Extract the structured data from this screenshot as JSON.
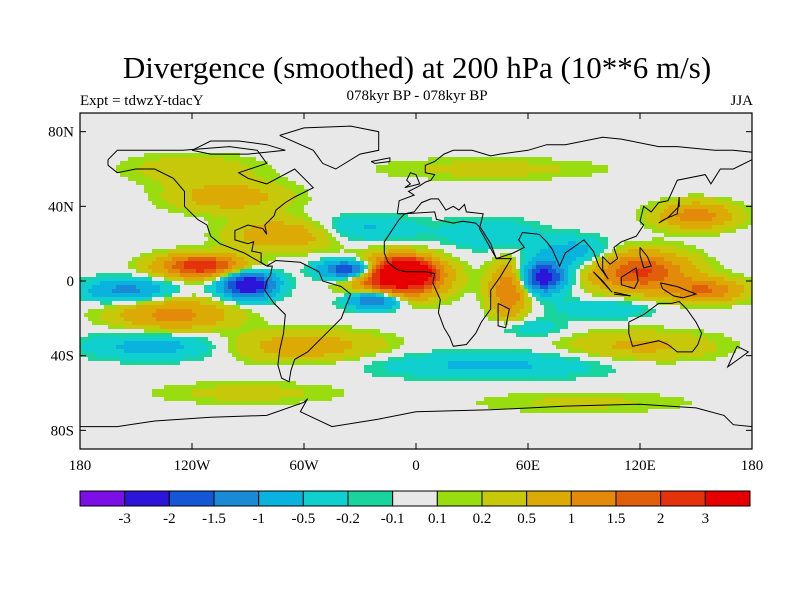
{
  "header": {
    "title": "Divergence (smoothed) at 200 hPa (10**6 m/s)",
    "left_label": "Expt = tdwzY-tdacY",
    "center_label": "078kyr BP - 078kyr BP",
    "right_label": "JJA"
  },
  "axes": {
    "lat_ticks": [
      {
        "value": 80,
        "label": "80N"
      },
      {
        "value": 40,
        "label": "40N"
      },
      {
        "value": 0,
        "label": "0"
      },
      {
        "value": -40,
        "label": "40S"
      },
      {
        "value": -80,
        "label": "80S"
      }
    ],
    "lon_ticks": [
      {
        "value": -180,
        "label": "180"
      },
      {
        "value": -120,
        "label": "120W"
      },
      {
        "value": -60,
        "label": "60W"
      },
      {
        "value": 0,
        "label": "0"
      },
      {
        "value": 60,
        "label": "60E"
      },
      {
        "value": 120,
        "label": "120E"
      },
      {
        "value": 180,
        "label": "180"
      }
    ],
    "lat_range": [
      -90,
      90
    ],
    "lon_range": [
      -180,
      180
    ]
  },
  "colorbar": {
    "labels": [
      "-3",
      "-2",
      "-1.5",
      "-1",
      "-0.5",
      "-0.2",
      "-0.1",
      "0.1",
      "0.2",
      "0.5",
      "1",
      "1.5",
      "2",
      "3"
    ],
    "colors": [
      "#7a0fe6",
      "#2d14d9",
      "#1457d6",
      "#1a8ad6",
      "#0ab3dd",
      "#10cfcf",
      "#1ad49e",
      "#e8e8e8",
      "#99dd10",
      "#c8c80a",
      "#dcaa05",
      "#e48a0a",
      "#e0600a",
      "#e3320c",
      "#e60000"
    ]
  },
  "features": [
    {
      "lon": -10,
      "lat": 2,
      "rx": 22,
      "ry": 10,
      "value": 3.5
    },
    {
      "lon": -5,
      "lat": 5,
      "rx": 12,
      "ry": 6,
      "value": 4
    },
    {
      "lon": -35,
      "lat": 6,
      "rx": 15,
      "ry": 5,
      "value": -2.5
    },
    {
      "lon": -22,
      "lat": -10,
      "rx": 14,
      "ry": 5,
      "value": -2
    },
    {
      "lon": -90,
      "lat": -2,
      "rx": 14,
      "ry": 7,
      "value": -2.8
    },
    {
      "lon": -115,
      "lat": 8,
      "rx": 22,
      "ry": 6,
      "value": 2.5
    },
    {
      "lon": -130,
      "lat": -18,
      "rx": 30,
      "ry": 8,
      "value": 1.2
    },
    {
      "lon": -155,
      "lat": -5,
      "rx": 22,
      "ry": 6,
      "value": -1.2
    },
    {
      "lon": 68,
      "lat": 2,
      "rx": 12,
      "ry": 8,
      "value": -2.5
    },
    {
      "lon": 50,
      "lat": -5,
      "rx": 10,
      "ry": 14,
      "value": 1.6
    },
    {
      "lon": 120,
      "lat": 5,
      "rx": 25,
      "ry": 10,
      "value": 2.1
    },
    {
      "lon": 155,
      "lat": -5,
      "rx": 20,
      "ry": 6,
      "value": 1.5
    },
    {
      "lon": 150,
      "lat": 35,
      "rx": 20,
      "ry": 7,
      "value": 1.3
    },
    {
      "lon": 85,
      "lat": 15,
      "rx": 20,
      "ry": 8,
      "value": -0.8
    },
    {
      "lon": -70,
      "lat": 25,
      "rx": 28,
      "ry": 8,
      "value": 1.0
    },
    {
      "lon": -30,
      "lat": 28,
      "rx": 30,
      "ry": 7,
      "value": -0.6
    },
    {
      "lon": 40,
      "lat": 25,
      "rx": 25,
      "ry": 8,
      "value": -0.5
    },
    {
      "lon": -100,
      "lat": 45,
      "rx": 30,
      "ry": 8,
      "value": 0.8
    },
    {
      "lon": -120,
      "lat": 60,
      "rx": 35,
      "ry": 8,
      "value": 0.4
    },
    {
      "lon": 40,
      "lat": 60,
      "rx": 60,
      "ry": 6,
      "value": 0.3
    },
    {
      "lon": -140,
      "lat": -35,
      "rx": 35,
      "ry": 7,
      "value": -0.7
    },
    {
      "lon": -60,
      "lat": -35,
      "rx": 40,
      "ry": 8,
      "value": 0.8
    },
    {
      "lon": 40,
      "lat": -45,
      "rx": 60,
      "ry": 7,
      "value": -0.6
    },
    {
      "lon": 120,
      "lat": -35,
      "rx": 40,
      "ry": 8,
      "value": 0.6
    },
    {
      "lon": -90,
      "lat": -60,
      "rx": 50,
      "ry": 6,
      "value": 0.3
    },
    {
      "lon": 90,
      "lat": -65,
      "rx": 60,
      "ry": 6,
      "value": 0.25
    },
    {
      "lon": 60,
      "lat": -25,
      "rx": 20,
      "ry": 5,
      "value": -0.4
    },
    {
      "lon": 100,
      "lat": -15,
      "rx": 25,
      "ry": 5,
      "value": -0.5
    }
  ]
}
